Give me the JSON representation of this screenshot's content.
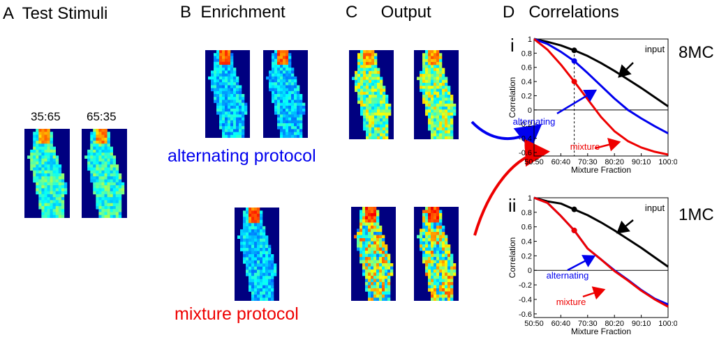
{
  "panels": {
    "a_title": "A  Test Stimuli",
    "b_title": "B  Enrichment",
    "c_title": "C     Output",
    "d_title": "D   Correlations"
  },
  "stimuli": {
    "left_label": "35:65",
    "right_label": "65:35"
  },
  "protocols": {
    "alternating": "alternating protocol",
    "mixture": "mixture protocol"
  },
  "colors": {
    "background_blue": "#000080",
    "alternating": "#0000ee",
    "mixture": "#ee0000",
    "input": "#000000"
  },
  "charts_meta": {
    "xlabel": "Mixture Fraction",
    "ylabel": "Correlation",
    "x_ticks": [
      "50:50",
      "60:40",
      "70:30",
      "80:20",
      "90:10",
      "100:0"
    ],
    "y_ticks": [
      "1",
      "0.8",
      "0.6",
      "0.4",
      "0.2",
      "0",
      "-0.2",
      "-0.4",
      "-0.6"
    ],
    "label_input": "input",
    "label_alternating": "alternating",
    "label_mixture": "mixture"
  },
  "chart_data": [
    {
      "type": "line",
      "panel": "i",
      "condition": "8MC",
      "xlabel": "Mixture Fraction",
      "ylabel": "Correlation",
      "x": [
        "50:50",
        "55:45",
        "60:40",
        "65:35",
        "70:30",
        "75:25",
        "80:20",
        "85:15",
        "90:10",
        "95:5",
        "100:0"
      ],
      "ylim": [
        -0.65,
        1
      ],
      "series": [
        {
          "name": "input",
          "values": [
            1.0,
            0.96,
            0.91,
            0.84,
            0.76,
            0.66,
            0.55,
            0.43,
            0.31,
            0.18,
            0.05
          ]
        },
        {
          "name": "alternating",
          "values": [
            1.0,
            0.93,
            0.82,
            0.69,
            0.52,
            0.34,
            0.16,
            0.0,
            -0.12,
            -0.23,
            -0.33
          ]
        },
        {
          "name": "mixture",
          "values": [
            1.0,
            0.85,
            0.64,
            0.4,
            0.15,
            -0.1,
            -0.3,
            -0.44,
            -0.53,
            -0.59,
            -0.63
          ]
        }
      ],
      "marker_x": "65:35",
      "grid": false
    },
    {
      "type": "line",
      "panel": "ii",
      "condition": "1MC",
      "xlabel": "Mixture Fraction",
      "ylabel": "Correlation",
      "x": [
        "50:50",
        "55:45",
        "60:40",
        "65:35",
        "70:30",
        "75:25",
        "80:20",
        "85:15",
        "90:10",
        "95:5",
        "100:0"
      ],
      "ylim": [
        -0.65,
        1
      ],
      "series": [
        {
          "name": "input",
          "values": [
            1.0,
            0.95,
            0.92,
            0.84,
            0.76,
            0.66,
            0.55,
            0.43,
            0.31,
            0.18,
            0.05
          ]
        },
        {
          "name": "alternating",
          "values": [
            1.0,
            0.93,
            0.75,
            0.55,
            0.3,
            0.15,
            0.0,
            -0.13,
            -0.27,
            -0.39,
            -0.47
          ]
        },
        {
          "name": "mixture",
          "values": [
            1.0,
            0.93,
            0.75,
            0.55,
            0.3,
            0.15,
            -0.01,
            -0.14,
            -0.28,
            -0.4,
            -0.5
          ]
        }
      ],
      "marker_x": "65:35",
      "grid": false
    }
  ]
}
